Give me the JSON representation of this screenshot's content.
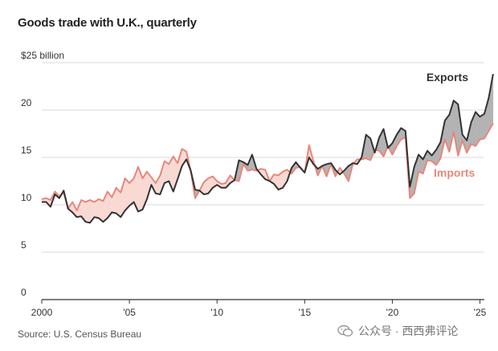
{
  "header": {
    "title": "Goods trade with U.K., quarterly"
  },
  "footer": {
    "source": "Source: U.S. Census Bureau"
  },
  "watermark": {
    "text": "公众号 · 西西弗评论",
    "icon": "wechat-icon"
  },
  "colors": {
    "exports": "#333333",
    "imports": "#e8877a",
    "import_fill": "#f8d9d3",
    "export_fill": "#b3b3b3",
    "grid": "#d9d9d9",
    "axis": "#333333"
  },
  "chart_data": {
    "type": "line",
    "title": "Goods trade with U.K., quarterly",
    "xlabel": "",
    "ylabel": "",
    "ylim": [
      0,
      25
    ],
    "xlim": [
      2000,
      2025.25
    ],
    "grid": true,
    "y_ticks": [
      {
        "value": 0,
        "label": "0"
      },
      {
        "value": 5,
        "label": "5"
      },
      {
        "value": 10,
        "label": "10"
      },
      {
        "value": 15,
        "label": "15"
      },
      {
        "value": 20,
        "label": "20"
      },
      {
        "value": 25,
        "label": "$25 billion"
      }
    ],
    "x_ticks": [
      {
        "value": 2000,
        "label": "2000"
      },
      {
        "value": 2005,
        "label": "'05"
      },
      {
        "value": 2010,
        "label": "'10"
      },
      {
        "value": 2015,
        "label": "'15"
      },
      {
        "value": 2020,
        "label": "'20"
      },
      {
        "value": 2025,
        "label": "'25"
      }
    ],
    "x_start": 2000,
    "x_step": 0.25,
    "series": [
      {
        "name": "Exports",
        "values": [
          10.3,
          10.3,
          9.8,
          11.1,
          10.7,
          11.5,
          9.6,
          9.2,
          8.7,
          8.8,
          8.2,
          8.1,
          8.7,
          8.6,
          8.2,
          8.6,
          9.2,
          9.1,
          8.7,
          9.4,
          9.9,
          10.3,
          9.3,
          9.5,
          10.6,
          12.1,
          11.2,
          11.1,
          12.3,
          12.5,
          11.4,
          12.7,
          14.1,
          14.8,
          13.6,
          11.6,
          11.5,
          11.1,
          11.2,
          11.8,
          12.1,
          11.8,
          11.8,
          12.3,
          12.6,
          14.7,
          14.5,
          14.2,
          15.3,
          13.8,
          13.2,
          12.7,
          12.5,
          12.2,
          11.6,
          11.8,
          12.5,
          13.9,
          14.5,
          13.9,
          13.4,
          15.0,
          14.3,
          13.8,
          14.1,
          14.3,
          14.4,
          13.7,
          13.2,
          13.6,
          14.1,
          14.4,
          14.3,
          15.0,
          17.4,
          17.0,
          15.5,
          17.1,
          18.0,
          16.0,
          16.5,
          17.4,
          18.1,
          17.8,
          11.9,
          14.0,
          15.3,
          14.8,
          15.7,
          15.2,
          15.8,
          16.6,
          18.9,
          19.5,
          21.0,
          20.6,
          17.4,
          16.8,
          18.7,
          19.8,
          19.3,
          19.6,
          21.3,
          23.8
        ],
        "label_position": "top-right"
      },
      {
        "name": "Imports",
        "values": [
          10.6,
          10.7,
          10.5,
          11.4,
          10.9,
          11.3,
          9.6,
          10.3,
          9.4,
          10.5,
          10.3,
          10.5,
          10.3,
          10.6,
          10.4,
          11.4,
          10.8,
          11.8,
          11.3,
          12.8,
          12.3,
          12.8,
          14.0,
          12.8,
          13.5,
          12.9,
          12.3,
          13.1,
          14.6,
          14.3,
          15.1,
          14.4,
          15.9,
          15.6,
          13.6,
          10.7,
          11.5,
          12.4,
          12.8,
          13.0,
          12.5,
          12.2,
          12.3,
          13.1,
          12.6,
          12.5,
          14.3,
          13.6,
          13.7,
          13.6,
          13.8,
          13.7,
          12.5,
          13.2,
          13.1,
          13.5,
          13.7,
          13.3,
          13.9,
          14.0,
          13.4,
          16.3,
          14.6,
          13.1,
          14.1,
          13.0,
          14.3,
          13.0,
          13.9,
          13.3,
          12.5,
          14.3,
          14.8,
          14.8,
          14.9,
          14.7,
          15.8,
          15.7,
          15.1,
          16.2,
          15.3,
          16.2,
          16.9,
          17.1,
          10.7,
          11.2,
          13.5,
          13.3,
          14.7,
          14.6,
          14.2,
          14.9,
          16.9,
          15.6,
          17.7,
          15.2,
          16.8,
          15.5,
          16.4,
          16.2,
          16.9,
          17.0,
          17.8,
          18.6
        ],
        "label_position": "right"
      }
    ],
    "fill_between": "Exports vs Imports (red where imports exceed exports, gray where exports exceed imports)"
  }
}
